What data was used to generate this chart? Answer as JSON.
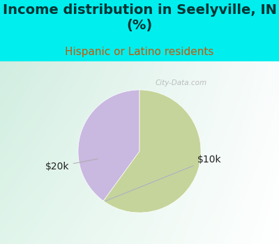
{
  "title": "Income distribution in Seelyville, IN\n(%)",
  "subtitle": "Hispanic or Latino residents",
  "slices": [
    {
      "label": "$10k",
      "value": 40,
      "color": "#c9b8e0"
    },
    {
      "label": "$20k",
      "value": 60,
      "color": "#c5d49a"
    }
  ],
  "background_color": "#00eeee",
  "title_color": "#003333",
  "subtitle_color": "#cc5500",
  "label_color": "#222222",
  "title_fontsize": 14,
  "subtitle_fontsize": 11,
  "label_fontsize": 10,
  "startangle": 90,
  "watermark": "City-Data.com"
}
